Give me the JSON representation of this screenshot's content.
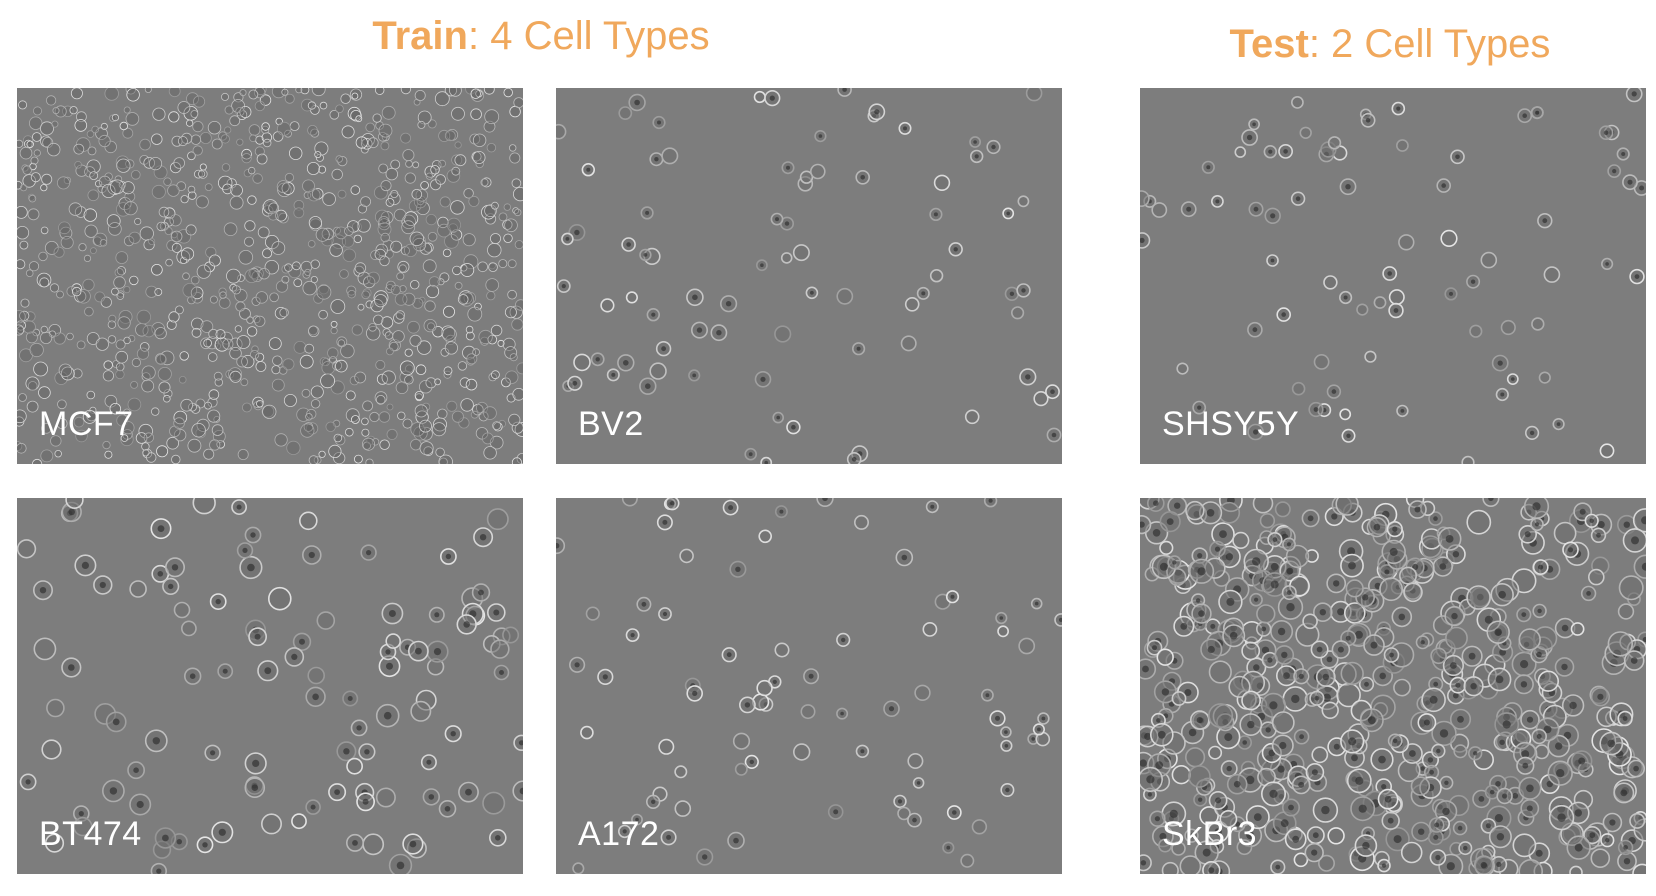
{
  "headings": {
    "train": {
      "bold": "Train",
      "rest": ": 4 Cell Types"
    },
    "test": {
      "bold": "Test",
      "rest": ": 2 Cell Types"
    }
  },
  "colors": {
    "heading": "#f0a85c",
    "panel_bg": "#7d7d7d",
    "label": "#ffffff"
  },
  "panels": {
    "mcf7": {
      "label": "MCF7",
      "density": "confluent"
    },
    "bv2": {
      "label": "BV2",
      "density": "sparse"
    },
    "shsy5y": {
      "label": "SHSY5Y",
      "density": "sparse"
    },
    "bt474": {
      "label": "BT474",
      "density": "moderate"
    },
    "a172": {
      "label": "A172",
      "density": "sparse"
    },
    "skbr3": {
      "label": "SkBr3",
      "density": "dense"
    }
  }
}
